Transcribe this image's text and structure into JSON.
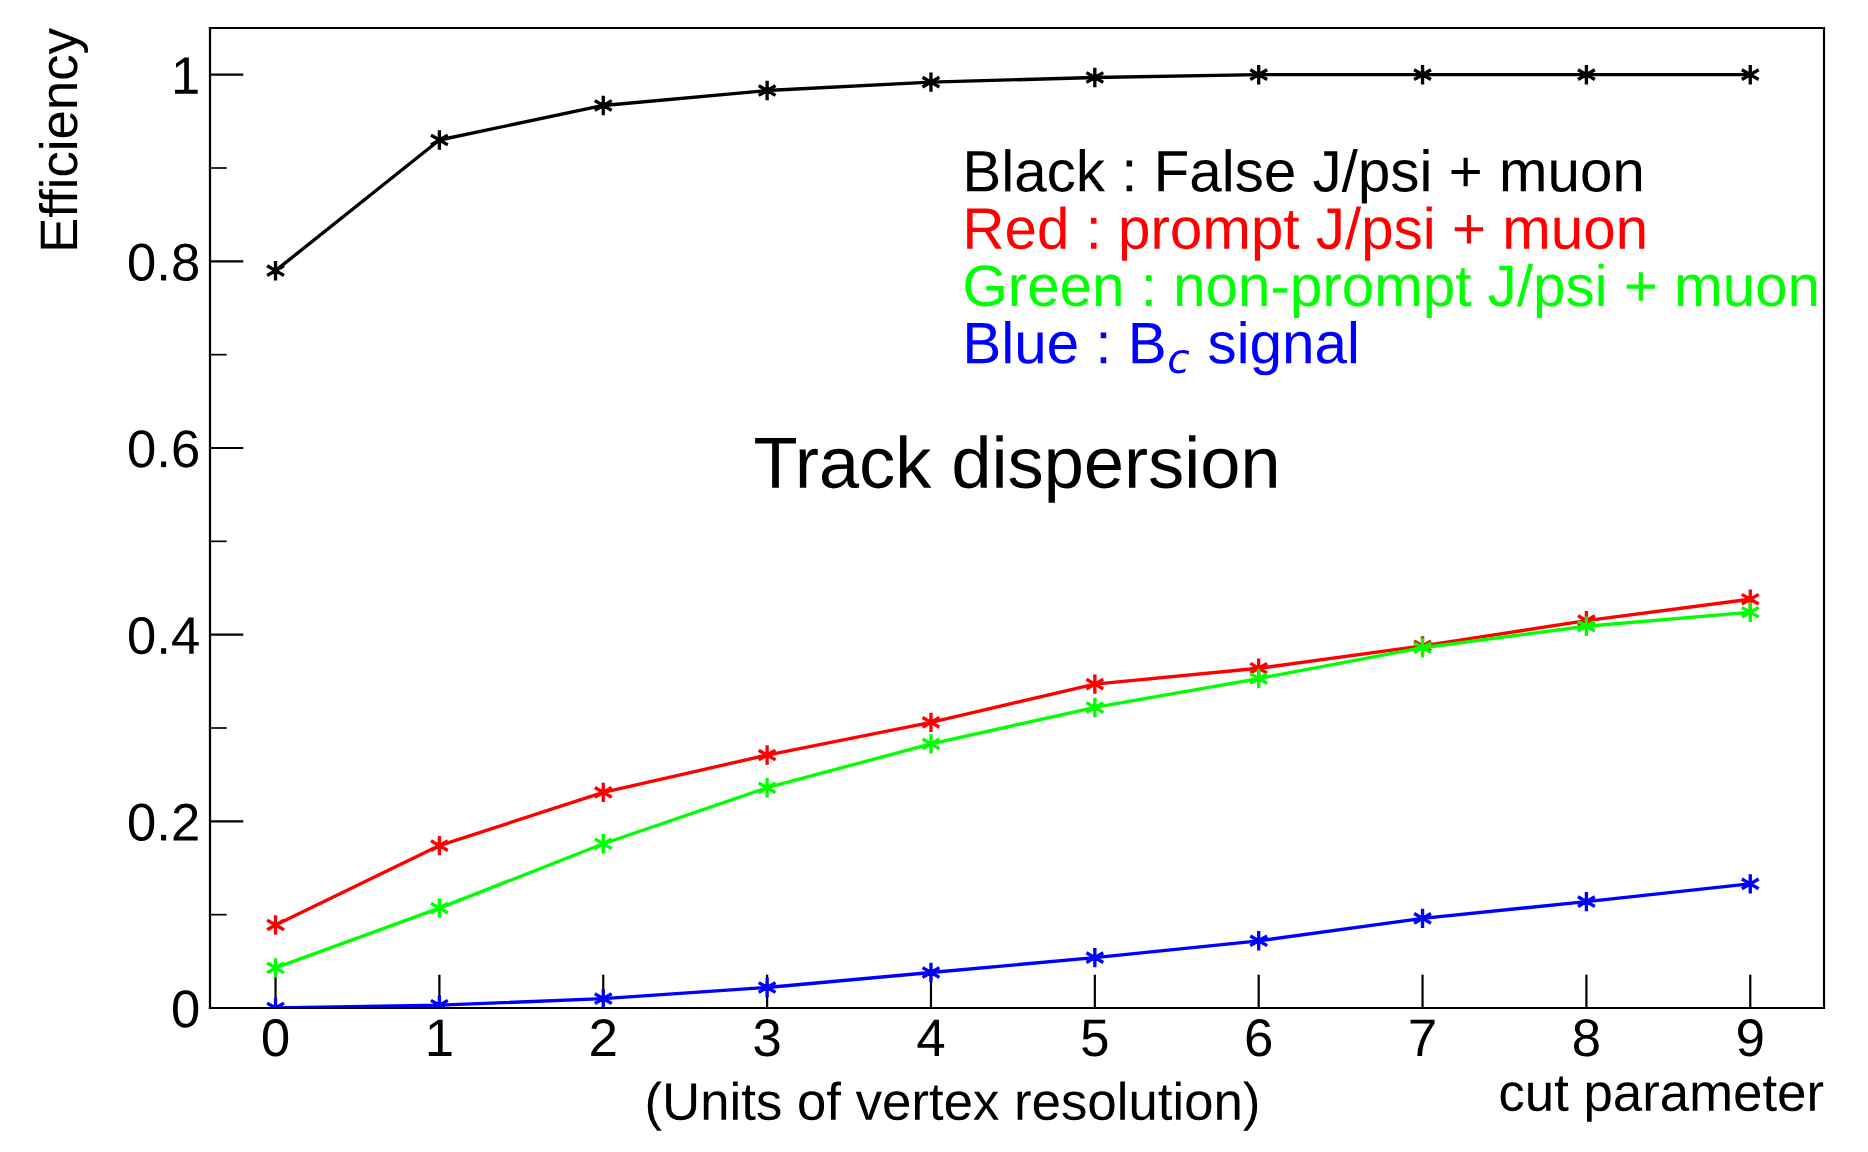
{
  "chart_data": {
    "type": "line",
    "title": "Track dispersion",
    "xlabel": "cut parameter",
    "ylabel": "Efficiency",
    "annotations": [
      "(Units of vertex resolution)"
    ],
    "x": [
      0,
      1,
      2,
      3,
      4,
      5,
      6,
      7,
      8,
      9
    ],
    "series": [
      {
        "name": "Black : False J/psi + muon",
        "color": "#000000",
        "values": [
          0.79,
          0.93,
          0.967,
          0.983,
          0.992,
          0.997,
          1.0,
          1.0,
          1.0,
          1.0
        ]
      },
      {
        "name": "Red : prompt J/psi + muon",
        "color": "#ff0000",
        "values": [
          0.089,
          0.174,
          0.231,
          0.271,
          0.306,
          0.347,
          0.364,
          0.388,
          0.415,
          0.438
        ]
      },
      {
        "name": "Green : non-prompt J/psi + muon",
        "color": "#00ff00",
        "values": [
          0.043,
          0.107,
          0.176,
          0.236,
          0.283,
          0.322,
          0.353,
          0.386,
          0.409,
          0.424
        ]
      },
      {
        "name": "Blue : B$_{c}$ signal",
        "color": "#0000ff",
        "values": [
          0.0,
          0.003,
          0.01,
          0.022,
          0.038,
          0.054,
          0.072,
          0.096,
          0.114,
          0.133
        ]
      }
    ],
    "xlim": [
      -0.4,
      9.45
    ],
    "ylim": [
      0,
      1.05
    ],
    "xticks": [
      0,
      1,
      2,
      3,
      4,
      5,
      6,
      7,
      8,
      9
    ],
    "yticks": [
      0,
      0.2,
      0.4,
      0.6,
      0.8,
      1,
      {
        "value": 0.1,
        "label": null
      },
      {
        "value": 0.3,
        "label": null
      },
      {
        "value": 0.5,
        "label": null
      },
      {
        "value": 0.7,
        "label": null
      },
      {
        "value": 0.9,
        "label": null
      }
    ],
    "marker": "cross",
    "line_style": "solid",
    "grid": false,
    "legend": "top right"
  }
}
